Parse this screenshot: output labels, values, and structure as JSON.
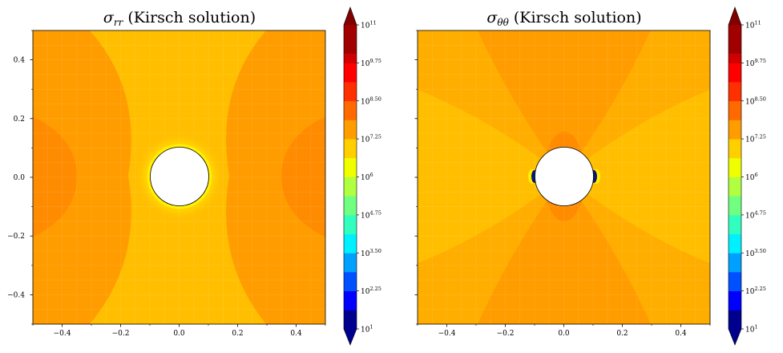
{
  "chart_data": [
    {
      "type": "heatmap",
      "title_symbol": "σ",
      "title_subscript": "rr",
      "title_rest": " (Kirsch solution)",
      "xlim": [
        -0.5,
        0.5
      ],
      "ylim": [
        -0.5,
        0.5
      ],
      "x_ticks": [
        "−0.4",
        "−0.2",
        "0.0",
        "0.2",
        "0.4"
      ],
      "y_ticks": [
        "−0.4",
        "−0.2",
        "0.0",
        "0.2",
        "0.4"
      ],
      "hole_radius": 0.1,
      "scale": "log",
      "dominant_level": "10^7.25",
      "grid": true
    },
    {
      "type": "heatmap",
      "title_symbol": "σ",
      "title_subscript": "θθ",
      "title_rest": " (Kirsch solution)",
      "xlim": [
        -0.5,
        0.5
      ],
      "ylim": [
        -0.5,
        0.5
      ],
      "x_ticks": [
        "−0.4",
        "−0.2",
        "0.0",
        "0.2",
        "0.4"
      ],
      "y_ticks": [],
      "hole_radius": 0.1,
      "scale": "log",
      "dominant_level": "10^7.5",
      "grid": true
    }
  ],
  "colorbar": {
    "min_exp": 1,
    "max_exp": 11,
    "extend": "both",
    "labels": [
      {
        "base": "10",
        "exp": "11"
      },
      {
        "base": "10",
        "exp": "9.75"
      },
      {
        "base": "10",
        "exp": "8.50"
      },
      {
        "base": "10",
        "exp": "7.25"
      },
      {
        "base": "10",
        "exp": "6"
      },
      {
        "base": "10",
        "exp": "4.75"
      },
      {
        "base": "10",
        "exp": "3.50"
      },
      {
        "base": "10",
        "exp": "2.25"
      },
      {
        "base": "10",
        "exp": "1"
      }
    ],
    "label_values": [
      11,
      9.75,
      8.5,
      7.25,
      6,
      4.75,
      3.5,
      2.25,
      1
    ]
  },
  "colors": {
    "deep_orange": "#ff8c00",
    "orange": "#ff9d00",
    "light_orange": "#ffae00",
    "amber": "#ffbf00",
    "yellow": "#ffef00",
    "hole": "#ffffff",
    "dark_blue": "#0a1670"
  }
}
